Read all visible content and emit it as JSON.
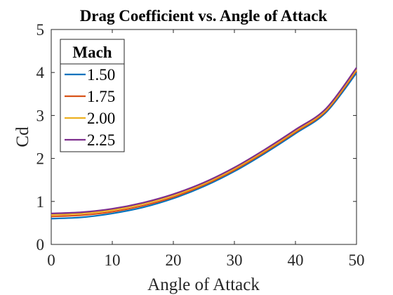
{
  "chart_data": {
    "type": "line",
    "title": "Drag Coefficient vs. Angle of Attack",
    "xlabel": "Angle of Attack",
    "ylabel": "Cd",
    "xlim": [
      0,
      50
    ],
    "ylim": [
      0,
      5
    ],
    "xticks": [
      "0",
      "10",
      "20",
      "30",
      "40",
      "50"
    ],
    "yticks": [
      "0",
      "1",
      "2",
      "3",
      "4",
      "5"
    ],
    "grid": false,
    "legend": {
      "title": "Mach",
      "placement": "top-left"
    },
    "x": [
      0,
      5,
      10,
      15,
      20,
      25,
      30,
      35,
      40,
      45,
      50
    ],
    "series": [
      {
        "name": "1.50",
        "color": "#0072BD",
        "values": [
          0.6,
          0.63,
          0.72,
          0.86,
          1.07,
          1.35,
          1.7,
          2.12,
          2.58,
          3.07,
          3.99
        ]
      },
      {
        "name": "1.75",
        "color": "#D95319",
        "values": [
          0.65,
          0.68,
          0.76,
          0.9,
          1.1,
          1.38,
          1.73,
          2.15,
          2.61,
          3.1,
          4.04
        ]
      },
      {
        "name": "2.00",
        "color": "#EDB120",
        "values": [
          0.69,
          0.72,
          0.8,
          0.94,
          1.14,
          1.41,
          1.76,
          2.18,
          2.64,
          3.13,
          4.07
        ]
      },
      {
        "name": "2.25",
        "color": "#7E2F8E",
        "values": [
          0.72,
          0.75,
          0.83,
          0.97,
          1.17,
          1.44,
          1.79,
          2.21,
          2.67,
          3.16,
          4.11
        ]
      }
    ]
  }
}
